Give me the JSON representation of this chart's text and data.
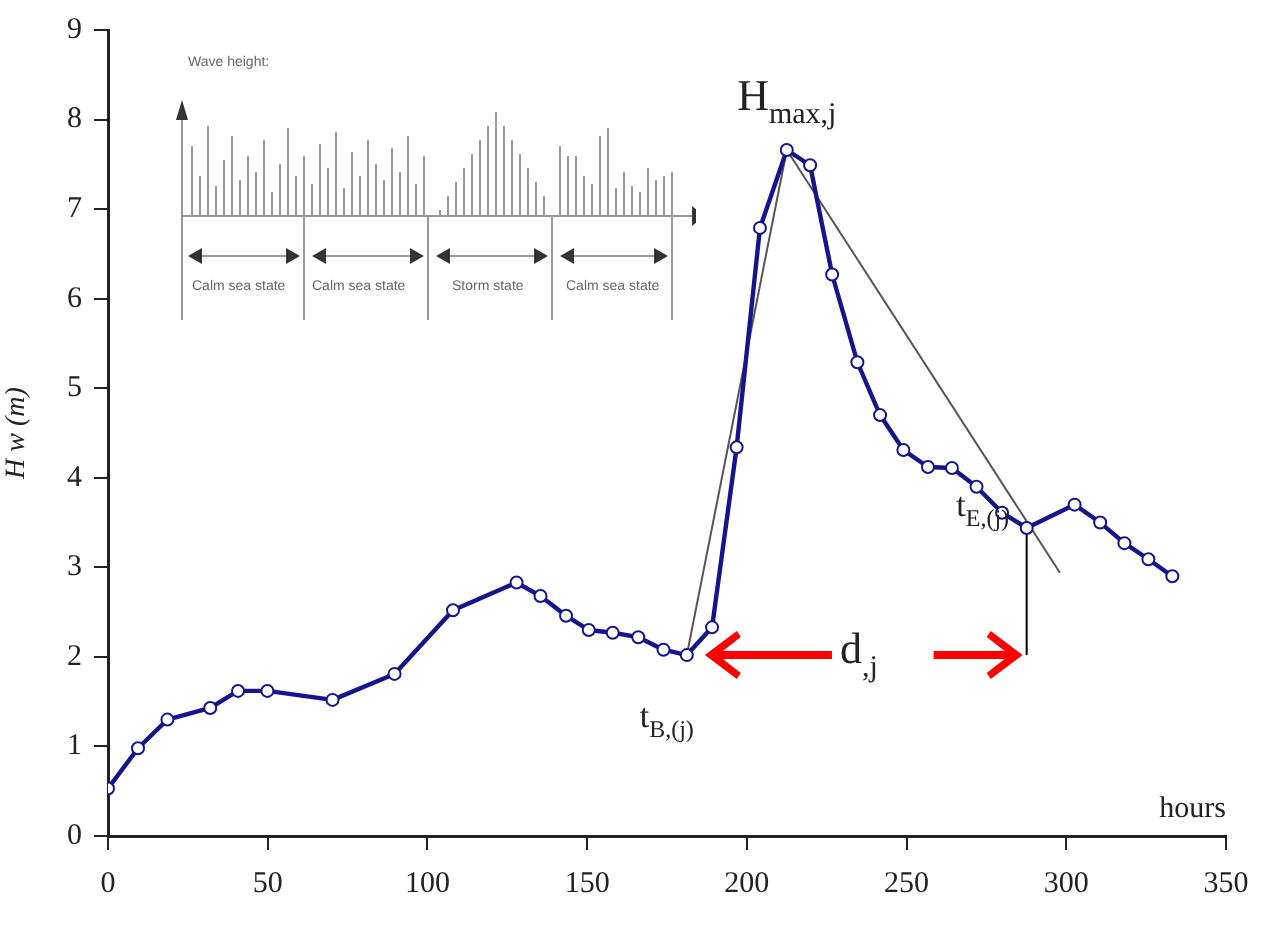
{
  "chart_data": {
    "type": "line",
    "ylabel": "H w (m)",
    "xlabel": "hours",
    "xlim": [
      0,
      350
    ],
    "xticks": [
      0,
      50,
      100,
      150,
      200,
      250,
      300,
      350
    ],
    "ylim": [
      0,
      9
    ],
    "yticks": [
      0,
      1,
      2,
      3,
      4,
      5,
      6,
      7,
      8,
      9
    ],
    "grid": false,
    "legend": false,
    "marker": "circle",
    "line_style": "solid",
    "series": [
      {
        "color": "#14148c",
        "x": [
          0,
          9.4,
          18.6,
          32,
          40.7,
          49.9,
          70.3,
          89.7,
          108,
          127.9,
          135.4,
          143.4,
          150.5,
          158,
          166,
          173.9,
          181.2,
          189.1,
          196.8,
          204.1,
          212.5,
          219.8,
          226.7,
          234.6,
          241.7,
          249,
          256.7,
          264.2,
          271.9,
          279.9,
          287.6,
          302.6,
          310.6,
          318.2,
          325.7,
          333.2
        ],
        "values": [
          0.53,
          0.98,
          1.3,
          1.43,
          1.62,
          1.62,
          1.52,
          1.81,
          2.52,
          2.83,
          2.68,
          2.46,
          2.3,
          2.27,
          2.22,
          2.08,
          2.02,
          2.33,
          4.34,
          6.79,
          7.66,
          7.49,
          6.27,
          5.29,
          4.7,
          4.31,
          4.12,
          4.11,
          3.9,
          3.61,
          3.44,
          3.7,
          3.5,
          3.27,
          3.09,
          2.9
        ]
      },
      {
        "type": "line",
        "marker": "none",
        "color": "#555555",
        "x": [
          181.2,
          212.5
        ],
        "values": [
          2.02,
          7.66
        ]
      },
      {
        "type": "line",
        "marker": "none",
        "color": "#555555",
        "x": [
          212.5,
          298
        ],
        "values": [
          7.66,
          2.94
        ]
      },
      {
        "type": "line",
        "marker": "none",
        "color": "#000000",
        "x": [
          287.6,
          287.6
        ],
        "values": [
          3.44,
          2.03
        ]
      }
    ],
    "annotations": [
      {
        "text": "H$_{max,j}$",
        "x": 212.5,
        "y": 7.66
      },
      {
        "text": "t$_{B,(j)}$",
        "x": 181.2,
        "y": 2.02
      },
      {
        "text": "t$_{E,(j)}$",
        "x": 287.6,
        "y": 3.44
      },
      "d$_{,j}$",
      "Wave height:",
      "Calm sea state",
      "Calm sea state",
      "Storm state",
      "Calm sea state"
    ]
  }
}
